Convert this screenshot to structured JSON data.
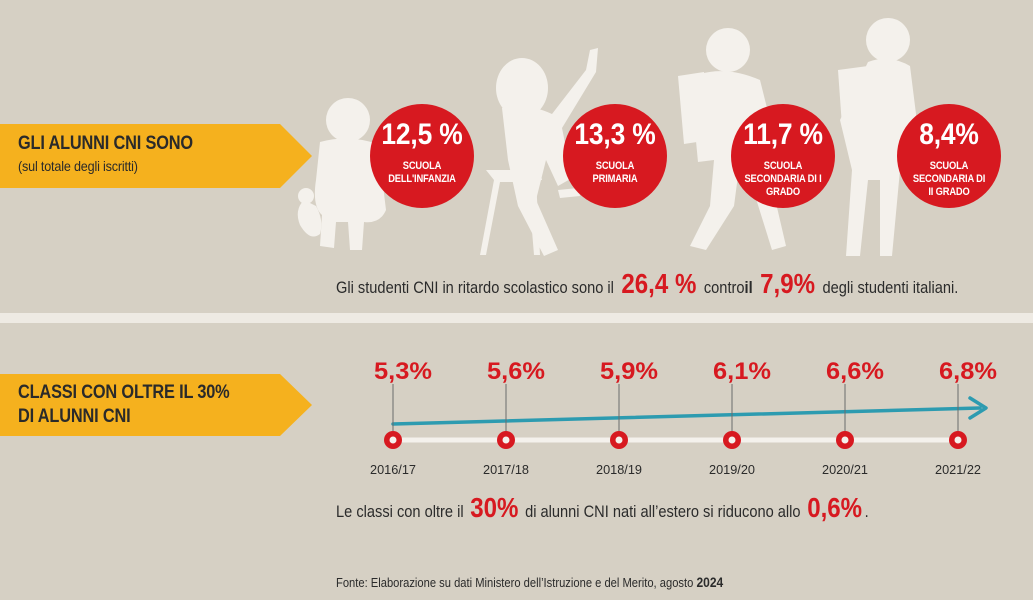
{
  "section1": {
    "title": "GLI ALUNNI CNI SONO",
    "subtitle": "(sul totale degli iscritti)",
    "circles": [
      {
        "pct": "12,5 %",
        "label": "SCUOLA DELL'INFANZIA"
      },
      {
        "pct": "13,3 %",
        "label": "SCUOLA PRIMARIA"
      },
      {
        "pct": "11,7 %",
        "label": "SCUOLA SECONDARIA DI I GRADO"
      },
      {
        "pct": "8,4%",
        "label": "SCUOLA SECONDARIA DI II GRADO"
      }
    ],
    "statement": {
      "part1": "Gli studenti CNI in ritardo scolastico sono il ",
      "value1": "26,4 %",
      "part2": " contro",
      "part3": "il ",
      "value2": "7,9%",
      "part4": " degli studenti italiani."
    }
  },
  "section2": {
    "title_line1": "CLASSI CON OLTRE IL 30%",
    "title_line2": "DI ALUNNI CNI",
    "sentence": {
      "part1": "Le classi con oltre il ",
      "value1": "30%",
      "part2": " di alunni CNI nati all’estero si riducono allo ",
      "value2": "0,6%",
      "part3": "."
    }
  },
  "source": {
    "text": "Fonte: Elaborazione su dati Ministero dell’Istruzione e del Merito, agosto ",
    "year": "2024"
  },
  "colors": {
    "background": "#d6d0c4",
    "banner": "#f5b11e",
    "red": "#d71920",
    "trend": "#2d9bb0"
  },
  "chart_data": {
    "type": "line",
    "categories": [
      "2016/17",
      "2017/18",
      "2018/19",
      "2019/20",
      "2020/21",
      "2021/22"
    ],
    "value_labels": [
      "5,3%",
      "5,6%",
      "5,9%",
      "6,1%",
      "6,6%",
      "6,8%"
    ],
    "series": [
      {
        "values": [
          5.3,
          5.6,
          5.9,
          6.1,
          6.6,
          6.8
        ]
      }
    ]
  }
}
